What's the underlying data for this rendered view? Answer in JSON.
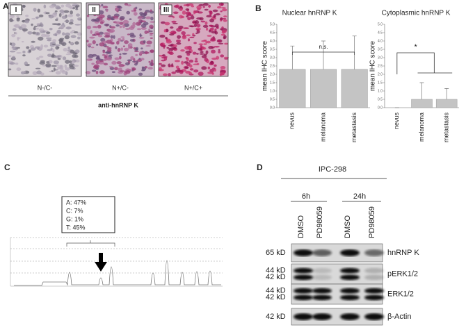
{
  "panel_a": {
    "letter": "A",
    "images": [
      {
        "label": "I",
        "caption": "N-/C-"
      },
      {
        "label": "II",
        "caption": "N+/C-"
      },
      {
        "label": "III",
        "caption": "N+/C+"
      }
    ],
    "footer": "anti-hnRNP K"
  },
  "panel_b": {
    "letter": "B",
    "charts": [
      {
        "type": "bar",
        "title": "Nuclear hnRNP K",
        "y_label": "mean IHC score",
        "categories": [
          "nevus",
          "melanoma",
          "metastasis"
        ],
        "values": [
          2.3,
          2.3,
          2.3
        ],
        "errors": [
          1.4,
          1.7,
          2.0
        ],
        "color": "#c4c4c4",
        "annotation": "n.s.",
        "ylim": [
          0,
          5
        ],
        "yticks": [
          {
            "value": 0,
            "label": "0.0"
          },
          {
            "value": 0.5,
            "label": "0.5"
          },
          {
            "value": 1,
            "label": "1.0"
          },
          {
            "value": 1.5,
            "label": "1.5"
          },
          {
            "value": 2,
            "label": "2.0"
          },
          {
            "value": 2.5,
            "label": "2.5"
          },
          {
            "value": 3,
            "label": "3.0"
          },
          {
            "value": 3.5,
            "label": "3.5"
          },
          {
            "value": 4,
            "label": "4.0"
          },
          {
            "value": 4.5,
            "label": "4.5"
          },
          {
            "value": 5,
            "label": "5.0"
          }
        ]
      },
      {
        "type": "bar",
        "title": "Cytoplasmic hnRNP K",
        "y_label": "mean IHC score",
        "categories": [
          "nevus",
          "melanoma",
          "metastasis"
        ],
        "values": [
          0,
          0.5,
          0.5
        ],
        "errors": [
          0,
          1.0,
          0.65
        ],
        "color": "#c4c4c4",
        "annotation": "*",
        "ylim": [
          0,
          5
        ],
        "yticks": [
          {
            "value": 0,
            "label": "0.0"
          },
          {
            "value": 0.5,
            "label": "0.5"
          },
          {
            "value": 1,
            "label": "1.0"
          },
          {
            "value": 1.5,
            "label": "1.5"
          },
          {
            "value": 2,
            "label": "2.0"
          },
          {
            "value": 2.5,
            "label": "2.5"
          },
          {
            "value": 3,
            "label": "3.0"
          },
          {
            "value": 3.5,
            "label": "3.5"
          },
          {
            "value": 4,
            "label": "4.0"
          },
          {
            "value": 4.5,
            "label": "4.5"
          },
          {
            "value": 5,
            "label": "5.0"
          }
        ]
      }
    ]
  },
  "panel_c": {
    "letter": "C",
    "box": [
      "A: 47%",
      "C: 7%",
      "G: 1%",
      "T: 45%"
    ]
  },
  "panel_d": {
    "letter": "D",
    "cell_line": "IPC-298",
    "times": [
      "6h",
      "24h"
    ],
    "lanes": [
      "DMSO",
      "PD98059",
      "DMSO",
      "PD98059"
    ],
    "rows": [
      {
        "sizes": [
          "65 kD"
        ],
        "label": "hnRNP K"
      },
      {
        "sizes": [
          "44 kD",
          "42 kD"
        ],
        "label": "pERK1/2"
      },
      {
        "sizes": [
          "44 kD",
          "42 kD"
        ],
        "label": "ERK1/2"
      },
      {
        "sizes": [
          "42 kD"
        ],
        "label": "β-Actin"
      }
    ]
  }
}
